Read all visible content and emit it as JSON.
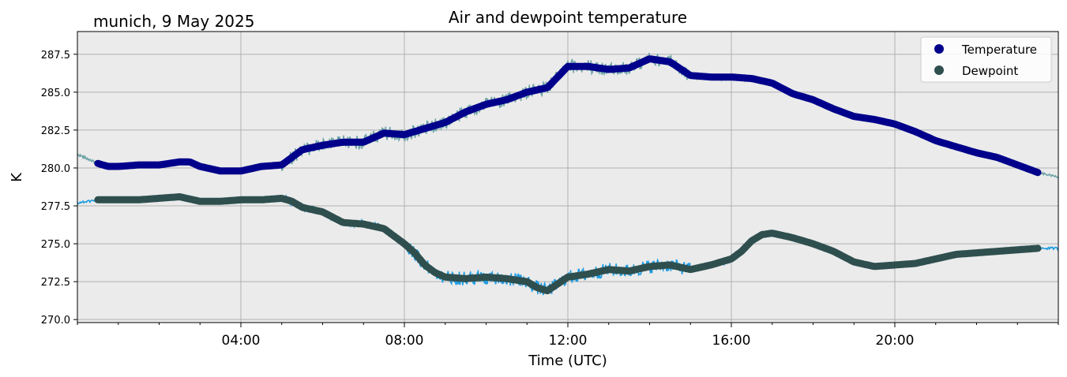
{
  "chart_data": {
    "type": "line",
    "title": "Air and dewpoint temperature",
    "subtitle": "munich, 9 May 2025",
    "xlabel": "Time (UTC)",
    "ylabel": "K",
    "xlim": [
      0,
      24
    ],
    "ylim": [
      269.8,
      289.0
    ],
    "yticks": [
      270.0,
      272.5,
      275.0,
      277.5,
      280.0,
      282.5,
      285.0,
      287.5
    ],
    "ytick_labels": [
      "270.0",
      "272.5",
      "275.0",
      "277.5",
      "280.0",
      "282.5",
      "285.0",
      "287.5"
    ],
    "xticks": [
      4,
      8,
      12,
      16,
      20
    ],
    "xtick_labels": [
      "04:00",
      "08:00",
      "12:00",
      "16:00",
      "20:00"
    ],
    "grid": true,
    "legend_position": "top-right",
    "background_color": "#ebebeb",
    "series": [
      {
        "name": "Temperature",
        "marker_color": "#00008b",
        "raw_color": "#6fa3a8",
        "x": [
          0.0,
          0.25,
          0.5,
          0.75,
          1.0,
          1.5,
          2.0,
          2.5,
          2.75,
          3.0,
          3.5,
          4.0,
          4.5,
          5.0,
          5.25,
          5.5,
          6.0,
          6.5,
          7.0,
          7.5,
          8.0,
          8.5,
          9.0,
          9.5,
          10.0,
          10.5,
          11.0,
          11.5,
          12.0,
          12.5,
          13.0,
          13.5,
          14.0,
          14.5,
          15.0,
          15.5,
          16.0,
          16.5,
          17.0,
          17.5,
          18.0,
          18.5,
          19.0,
          19.5,
          20.0,
          20.5,
          21.0,
          21.5,
          22.0,
          22.5,
          23.0,
          23.5,
          24.0
        ],
        "values": [
          280.9,
          280.6,
          280.3,
          280.1,
          280.1,
          280.2,
          280.2,
          280.4,
          280.4,
          280.1,
          279.8,
          279.8,
          280.1,
          280.2,
          280.7,
          281.2,
          281.5,
          281.7,
          281.7,
          282.3,
          282.2,
          282.6,
          283.0,
          283.7,
          284.2,
          284.5,
          285.0,
          285.3,
          286.7,
          286.7,
          286.5,
          286.6,
          287.2,
          287.0,
          286.1,
          286.0,
          286.0,
          285.9,
          285.6,
          284.9,
          284.5,
          283.9,
          283.4,
          283.2,
          282.9,
          282.4,
          281.8,
          281.4,
          281.0,
          280.7,
          280.2,
          279.7,
          279.4
        ]
      },
      {
        "name": "Dewpoint",
        "marker_color": "#2f4f4f",
        "raw_color": "#1e9be0",
        "x": [
          0.0,
          0.25,
          0.5,
          1.0,
          1.5,
          2.0,
          2.5,
          3.0,
          3.5,
          4.0,
          4.5,
          5.0,
          5.25,
          5.5,
          6.0,
          6.5,
          7.0,
          7.5,
          8.0,
          8.25,
          8.5,
          8.75,
          9.0,
          9.5,
          10.0,
          10.5,
          11.0,
          11.25,
          11.5,
          12.0,
          12.5,
          13.0,
          13.5,
          14.0,
          14.5,
          15.0,
          15.5,
          16.0,
          16.25,
          16.5,
          16.75,
          17.0,
          17.5,
          18.0,
          18.5,
          19.0,
          19.5,
          20.0,
          20.5,
          21.0,
          21.5,
          22.0,
          22.5,
          23.0,
          23.5,
          24.0
        ],
        "values": [
          277.7,
          277.8,
          277.9,
          277.9,
          277.9,
          278.0,
          278.1,
          277.8,
          277.8,
          277.9,
          277.9,
          278.0,
          277.8,
          277.4,
          277.1,
          276.4,
          276.3,
          276.0,
          275.0,
          274.4,
          273.6,
          273.1,
          272.8,
          272.7,
          272.8,
          272.7,
          272.5,
          272.1,
          271.9,
          272.8,
          273.0,
          273.3,
          273.2,
          273.5,
          273.6,
          273.3,
          273.6,
          274.0,
          274.5,
          275.2,
          275.6,
          275.7,
          275.4,
          275.0,
          274.5,
          273.8,
          273.5,
          273.6,
          273.7,
          274.0,
          274.3,
          274.4,
          274.5,
          274.6,
          274.7,
          274.7
        ]
      }
    ]
  }
}
